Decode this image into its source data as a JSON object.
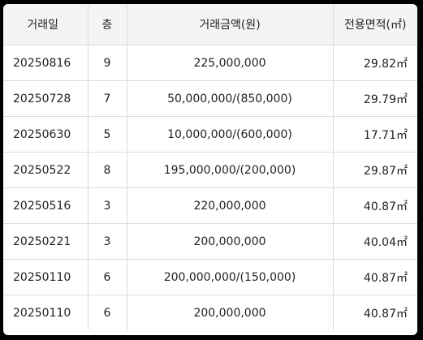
{
  "table": {
    "headers": {
      "date": "거래일",
      "floor": "층",
      "price": "거래금액(원)",
      "area": "전용면적(㎡)"
    },
    "rows": [
      {
        "date": "20250816",
        "floor": "9",
        "price": "225,000,000",
        "area": "29.82㎡"
      },
      {
        "date": "20250728",
        "floor": "7",
        "price": "50,000,000/(850,000)",
        "area": "29.79㎡"
      },
      {
        "date": "20250630",
        "floor": "5",
        "price": "10,000,000/(600,000)",
        "area": "17.71㎡"
      },
      {
        "date": "20250522",
        "floor": "8",
        "price": "195,000,000/(200,000)",
        "area": "29.87㎡"
      },
      {
        "date": "20250516",
        "floor": "3",
        "price": "220,000,000",
        "area": "40.87㎡"
      },
      {
        "date": "20250221",
        "floor": "3",
        "price": "200,000,000",
        "area": "40.04㎡"
      },
      {
        "date": "20250110",
        "floor": "6",
        "price": "200,000,000/(150,000)",
        "area": "40.87㎡"
      },
      {
        "date": "20250110",
        "floor": "6",
        "price": "200,000,000",
        "area": "40.87㎡"
      }
    ]
  }
}
